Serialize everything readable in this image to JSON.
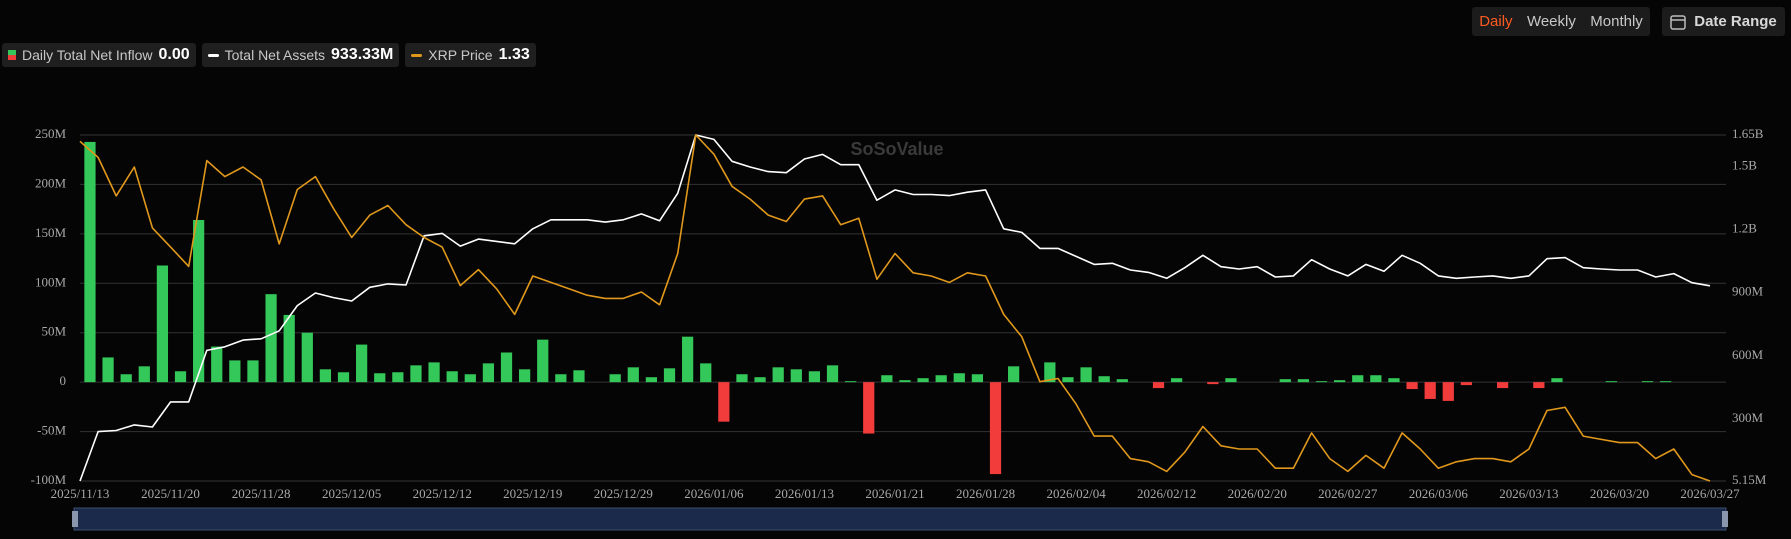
{
  "controls": {
    "periods": [
      "Daily",
      "Weekly",
      "Monthly"
    ],
    "active_period": 0,
    "date_range": "Date Range"
  },
  "chart_data": {
    "type": "combo",
    "watermark": "SoSoValue",
    "categories": [
      "2025/11/13",
      null,
      null,
      null,
      null,
      "2025/11/20",
      null,
      null,
      null,
      null,
      "2025/11/28",
      null,
      null,
      null,
      null,
      "2025/12/05",
      null,
      null,
      null,
      null,
      "2025/12/12",
      null,
      null,
      null,
      null,
      "2025/12/19",
      null,
      null,
      null,
      null,
      "2025/12/29",
      null,
      null,
      null,
      null,
      "2026/01/06",
      null,
      null,
      null,
      null,
      "2026/01/13",
      null,
      null,
      null,
      null,
      "2026/01/21",
      null,
      null,
      null,
      null,
      "2026/01/28",
      null,
      null,
      null,
      null,
      "2026/02/04",
      null,
      null,
      null,
      null,
      "2026/02/12",
      null,
      null,
      null,
      null,
      "2026/02/20",
      null,
      null,
      null,
      null,
      "2026/02/27",
      null,
      null,
      null,
      null,
      "2026/03/06",
      null,
      null,
      null,
      null,
      "2026/03/13",
      null,
      null,
      null,
      null,
      "2026/03/20",
      null,
      null,
      null,
      null,
      "2026/03/27"
    ],
    "series": [
      {
        "name": "Daily Total Net Inflow",
        "type": "bar",
        "color": "#34c759",
        "negative_color": "#f23b3b",
        "legend_value": "0.00",
        "values": [
          243,
          25,
          8,
          16,
          118,
          11,
          164,
          36,
          22,
          22,
          89,
          68,
          50,
          13,
          10,
          38,
          9,
          10,
          17,
          20,
          11,
          8,
          19,
          30,
          13,
          43,
          8,
          12,
          0,
          8,
          15,
          5,
          14,
          46,
          19,
          -40,
          8,
          5,
          15,
          13,
          11,
          17,
          1,
          -52,
          7,
          2,
          4,
          7,
          9,
          8,
          -93,
          16,
          0,
          20,
          5,
          15,
          6,
          3,
          0,
          -6,
          4,
          0,
          -2,
          4,
          0,
          0,
          3,
          3,
          1,
          2,
          7,
          7,
          4,
          -7,
          -17,
          -19,
          -3,
          0,
          -6,
          0,
          -6,
          4,
          0,
          0,
          1,
          0,
          1,
          1,
          0,
          0,
          0
        ]
      },
      {
        "name": "Total Net Assets",
        "type": "line",
        "axis": "y2",
        "color": "#ffffff",
        "legend_value": "933.33M",
        "values": [
          5.15,
          240,
          245,
          272,
          262,
          381,
          381,
          626,
          643,
          675,
          681,
          719,
          839,
          899,
          877,
          861,
          926,
          942,
          937,
          1171,
          1182,
          1122,
          1155,
          1144,
          1133,
          1204,
          1247,
          1247,
          1247,
          1236,
          1247,
          1275,
          1242,
          1373,
          1650,
          1629,
          1525,
          1498,
          1476,
          1471,
          1536,
          1558,
          1509,
          1509,
          1340,
          1389,
          1367,
          1367,
          1362,
          1378,
          1389,
          1204,
          1187,
          1111,
          1111,
          1073,
          1035,
          1040,
          1008,
          997,
          969,
          1019,
          1078,
          1024,
          1013,
          1024,
          975,
          980,
          1057,
          1013,
          980,
          1035,
          1002,
          1078,
          1040,
          980,
          969,
          975,
          980,
          969,
          980,
          1062,
          1067,
          1019,
          1013,
          1008,
          1008,
          975,
          991,
          948,
          933.33
        ]
      },
      {
        "name": "XRP Price",
        "type": "line",
        "axis": "y3",
        "color": "#e0981c",
        "legend_value": "1.33",
        "values": [
          2.39,
          2.34,
          2.22,
          2.31,
          2.12,
          2.06,
          2.0,
          2.33,
          2.28,
          2.31,
          2.27,
          2.07,
          2.24,
          2.28,
          2.18,
          2.09,
          2.16,
          2.19,
          2.13,
          2.09,
          2.06,
          1.94,
          1.99,
          1.93,
          1.85,
          1.97,
          1.95,
          1.93,
          1.91,
          1.9,
          1.9,
          1.92,
          1.88,
          2.04,
          2.41,
          2.35,
          2.25,
          2.21,
          2.16,
          2.14,
          2.21,
          2.22,
          2.13,
          2.15,
          1.96,
          2.04,
          1.98,
          1.97,
          1.95,
          1.98,
          1.97,
          1.85,
          1.78,
          1.64,
          1.65,
          1.57,
          1.47,
          1.47,
          1.4,
          1.39,
          1.36,
          1.42,
          1.5,
          1.44,
          1.43,
          1.43,
          1.37,
          1.37,
          1.48,
          1.4,
          1.36,
          1.41,
          1.37,
          1.48,
          1.43,
          1.37,
          1.39,
          1.4,
          1.4,
          1.39,
          1.43,
          1.55,
          1.56,
          1.47,
          1.46,
          1.45,
          1.45,
          1.4,
          1.43,
          1.35,
          1.33
        ]
      }
    ],
    "ylim": [
      -100,
      250
    ],
    "yticks": [
      {
        "value": -100,
        "label": "-100M"
      },
      {
        "value": -50,
        "label": "-50M"
      },
      0,
      {
        "value": 50,
        "label": "50M"
      },
      {
        "value": 100,
        "label": "100M"
      },
      {
        "value": 150,
        "label": "150M"
      },
      {
        "value": 200,
        "label": "200M"
      },
      {
        "value": 250,
        "label": "250M"
      }
    ],
    "y2lim": [
      5.15,
      1650
    ],
    "y2ticks": [
      {
        "value": 5.15,
        "label": "5.15M"
      },
      {
        "value": 300,
        "label": "300M"
      },
      {
        "value": 600,
        "label": "600M"
      },
      {
        "value": 900,
        "label": "900M"
      },
      {
        "value": 1200,
        "label": "1.2B"
      },
      {
        "value": 1500,
        "label": "1.5B"
      },
      {
        "value": 1650,
        "label": "1.65B"
      }
    ],
    "y3lim": [
      1.33,
      2.41
    ],
    "grid": true
  }
}
